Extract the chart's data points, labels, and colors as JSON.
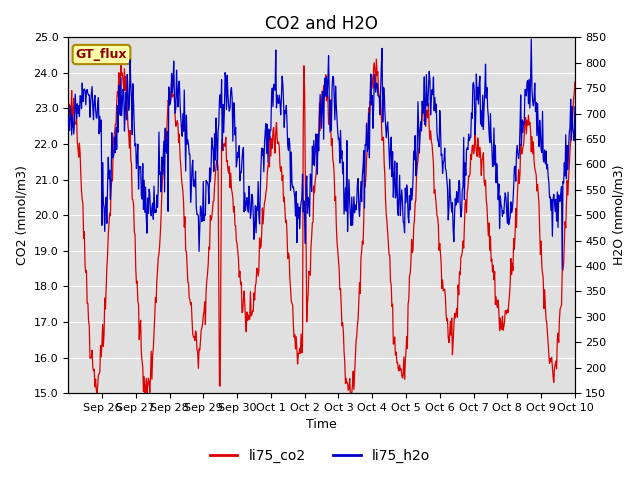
{
  "title": "CO2 and H2O",
  "xlabel": "Time",
  "ylabel_left": "CO2 (mmol/m3)",
  "ylabel_right": "H2O (mmol/m3)",
  "ylim_left": [
    15.0,
    25.0
  ],
  "ylim_right": [
    150,
    850
  ],
  "yticks_left": [
    15.0,
    16.0,
    17.0,
    18.0,
    19.0,
    20.0,
    21.0,
    22.0,
    23.0,
    24.0,
    25.0
  ],
  "yticks_right": [
    150,
    200,
    250,
    300,
    350,
    400,
    450,
    500,
    550,
    600,
    650,
    700,
    750,
    800,
    850
  ],
  "co2_color": "#dd0000",
  "h2o_color": "#0000cc",
  "line_width": 0.9,
  "background_color": "#e0e0e0",
  "legend_label_co2": "li75_co2",
  "legend_label_h2o": "li75_h2o",
  "watermark_text": "GT_flux",
  "title_fontsize": 12,
  "axis_fontsize": 9,
  "tick_fontsize": 8,
  "grid_color": "#ffffff",
  "fig_width": 6.4,
  "fig_height": 4.8
}
